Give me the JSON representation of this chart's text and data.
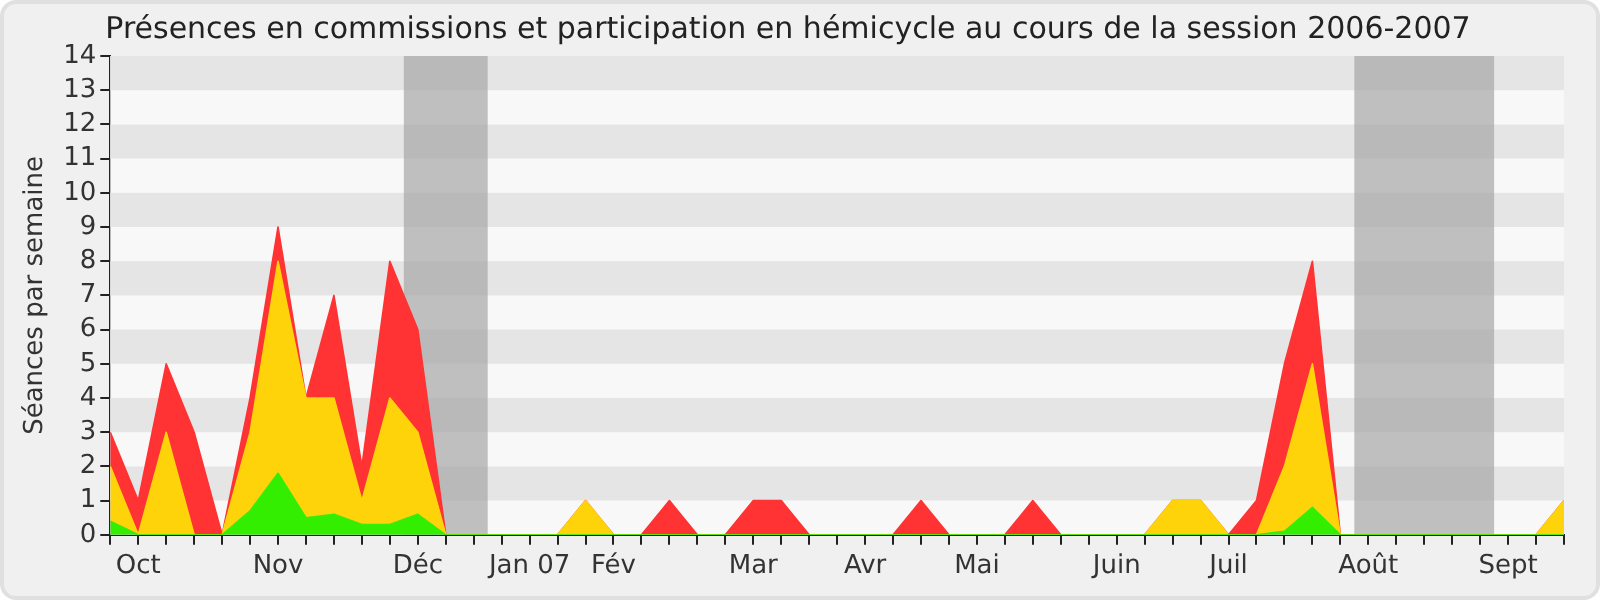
{
  "chart_data": {
    "type": "area",
    "stacked": true,
    "title": "Présences en commissions et participation en hémicycle au cours de la session 2006-2007",
    "ylabel": "Séances par semaine",
    "x": [
      "2006-09-25",
      "2006-10-02",
      "2006-10-09",
      "2006-10-16",
      "2006-10-23",
      "2006-10-30",
      "2006-11-06",
      "2006-11-13",
      "2006-11-20",
      "2006-11-27",
      "2006-12-04",
      "2006-12-11",
      "2006-12-18",
      "2006-12-25",
      "2007-01-01",
      "2007-01-08",
      "2007-01-15",
      "2007-01-22",
      "2007-01-29",
      "2007-02-05",
      "2007-02-12",
      "2007-02-19",
      "2007-02-26",
      "2007-03-05",
      "2007-03-12",
      "2007-03-19",
      "2007-03-26",
      "2007-04-02",
      "2007-04-09",
      "2007-04-16",
      "2007-04-23",
      "2007-04-30",
      "2007-05-07",
      "2007-05-14",
      "2007-05-21",
      "2007-05-28",
      "2007-06-04",
      "2007-06-11",
      "2007-06-18",
      "2007-06-25",
      "2007-07-02",
      "2007-07-09",
      "2007-07-16",
      "2007-07-23",
      "2007-07-30",
      "2007-08-06",
      "2007-08-13",
      "2007-08-20",
      "2007-08-27",
      "2007-09-03",
      "2007-09-10",
      "2007-09-17",
      "2007-09-24"
    ],
    "xlim": [
      "2006-09-25",
      "2007-09-24"
    ],
    "xticks": [
      {
        "value": "2006-09-25",
        "label": null
      },
      {
        "value": "2006-10-02",
        "label": "Oct"
      },
      {
        "value": "2006-10-09",
        "label": null
      },
      {
        "value": "2006-10-16",
        "label": null
      },
      {
        "value": "2006-10-23",
        "label": null
      },
      {
        "value": "2006-10-30",
        "label": null
      },
      {
        "value": "2006-11-06",
        "label": "Nov"
      },
      {
        "value": "2006-11-13",
        "label": null
      },
      {
        "value": "2006-11-20",
        "label": null
      },
      {
        "value": "2006-11-27",
        "label": null
      },
      {
        "value": "2006-12-04",
        "label": null
      },
      {
        "value": "2006-12-11",
        "label": "Déc"
      },
      {
        "value": "2006-12-18",
        "label": null
      },
      {
        "value": "2006-12-25",
        "label": null
      },
      {
        "value": "2007-01-01",
        "label": null
      },
      {
        "value": "2007-01-08",
        "label": "Jan 07"
      },
      {
        "value": "2007-01-15",
        "label": null
      },
      {
        "value": "2007-01-22",
        "label": null
      },
      {
        "value": "2007-01-29",
        "label": "Fév"
      },
      {
        "value": "2007-02-05",
        "label": null
      },
      {
        "value": "2007-02-12",
        "label": null
      },
      {
        "value": "2007-02-19",
        "label": null
      },
      {
        "value": "2007-02-26",
        "label": null
      },
      {
        "value": "2007-03-05",
        "label": "Mar"
      },
      {
        "value": "2007-03-12",
        "label": null
      },
      {
        "value": "2007-03-19",
        "label": null
      },
      {
        "value": "2007-03-26",
        "label": null
      },
      {
        "value": "2007-04-02",
        "label": "Avr"
      },
      {
        "value": "2007-04-09",
        "label": null
      },
      {
        "value": "2007-04-16",
        "label": null
      },
      {
        "value": "2007-04-23",
        "label": null
      },
      {
        "value": "2007-04-30",
        "label": "Mai"
      },
      {
        "value": "2007-05-07",
        "label": null
      },
      {
        "value": "2007-05-14",
        "label": null
      },
      {
        "value": "2007-05-21",
        "label": null
      },
      {
        "value": "2007-05-28",
        "label": null
      },
      {
        "value": "2007-06-04",
        "label": "Juin"
      },
      {
        "value": "2007-06-11",
        "label": null
      },
      {
        "value": "2007-06-18",
        "label": null
      },
      {
        "value": "2007-06-25",
        "label": null
      },
      {
        "value": "2007-07-02",
        "label": "Juil"
      },
      {
        "value": "2007-07-09",
        "label": null
      },
      {
        "value": "2007-07-16",
        "label": null
      },
      {
        "value": "2007-07-23",
        "label": null
      },
      {
        "value": "2007-07-30",
        "label": null
      },
      {
        "value": "2007-08-06",
        "label": "Août"
      },
      {
        "value": "2007-08-13",
        "label": null
      },
      {
        "value": "2007-08-20",
        "label": null
      },
      {
        "value": "2007-08-27",
        "label": null
      },
      {
        "value": "2007-09-03",
        "label": null
      },
      {
        "value": "2007-09-10",
        "label": "Sept"
      },
      {
        "value": "2007-09-17",
        "label": null
      },
      {
        "value": "2007-09-24",
        "label": null
      }
    ],
    "ylim": [
      0,
      14
    ],
    "yticks": [
      0,
      1,
      2,
      3,
      4,
      5,
      6,
      7,
      8,
      9,
      10,
      11,
      12,
      13,
      14
    ],
    "legend": false,
    "series": [
      {
        "color": "#33ee00",
        "values": [
          0.4,
          0,
          0,
          0,
          0,
          0.7,
          1.8,
          0.5,
          0.6,
          0.3,
          0.3,
          0.6,
          0,
          0,
          0,
          0,
          0,
          0,
          0,
          0,
          0,
          0,
          0,
          0,
          0,
          0,
          0,
          0,
          0,
          0,
          0,
          0,
          0,
          0,
          0,
          0,
          0,
          0,
          0,
          0,
          0,
          0,
          0.1,
          0.8,
          0,
          0,
          0,
          0,
          0,
          0,
          0,
          0,
          0
        ]
      },
      {
        "color": "#ffd30a",
        "values": [
          1.6,
          0,
          3,
          0,
          0,
          2.3,
          6.2,
          3.5,
          3.4,
          0.7,
          3.7,
          2.4,
          0,
          0,
          0,
          0,
          0,
          1,
          0,
          0,
          0,
          0,
          0,
          0,
          0,
          0,
          0,
          0,
          0,
          0,
          0,
          0,
          0,
          0,
          0,
          0,
          0,
          0,
          1,
          1,
          0,
          0,
          1.9,
          4.2,
          0,
          0,
          0,
          0,
          0,
          0,
          0,
          0,
          1
        ]
      },
      {
        "color": "#ff3333",
        "values": [
          1,
          1,
          2,
          3,
          0,
          1,
          1,
          0,
          3,
          1,
          4,
          3,
          0,
          0,
          0,
          0,
          0,
          0,
          0,
          0,
          1,
          0,
          0,
          1,
          1,
          0,
          0,
          0,
          0,
          1,
          0,
          0,
          0,
          1,
          0,
          0,
          0,
          0,
          0,
          0,
          0,
          1,
          3,
          3,
          0,
          0,
          0,
          0,
          0,
          0,
          0,
          0,
          0
        ]
      }
    ],
    "bands": [
      {
        "axis": "x",
        "from": "2006-12-07T12:00",
        "to": "2006-12-28T12:00",
        "color": "#a6a6a6"
      },
      {
        "axis": "x",
        "from": "2007-08-02T12:00",
        "to": "2007-09-06T12:00",
        "color": "#a6a6a6"
      }
    ]
  }
}
